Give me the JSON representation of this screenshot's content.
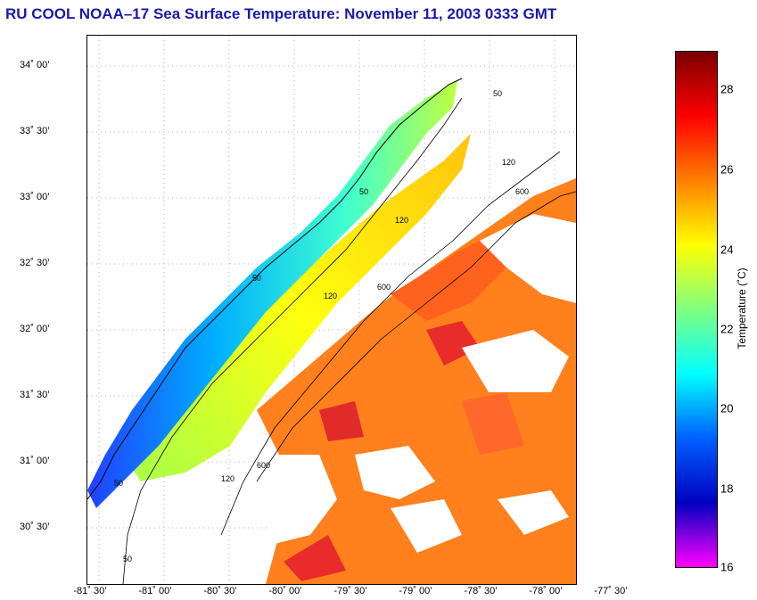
{
  "header": {
    "title": "RU COOL  NOAA–17  Sea Surface Temperature:  November 11, 2003 0333 GMT"
  },
  "map": {
    "lat_labels": [
      "34˚ 00’",
      "33˚ 30’",
      "33˚ 00’",
      "32˚ 30’",
      "32˚ 00’",
      "31˚ 30’",
      "31˚ 00’",
      "30˚ 30’"
    ],
    "lon_labels": [
      "-81˚ 30’",
      "-81˚ 00’",
      "-80˚ 30’",
      "-80˚ 00’",
      "-79˚ 30’",
      "-79˚ 00’",
      "-78˚ 30’",
      "-78˚ 00’",
      "-77˚ 30’"
    ],
    "contour_labels": [
      "50",
      "50",
      "50",
      "50",
      "50",
      "120",
      "120",
      "120",
      "120",
      "600",
      "600",
      "600"
    ]
  },
  "colorbar": {
    "ticks": [
      "28",
      "26",
      "24",
      "22",
      "20",
      "18",
      "16"
    ],
    "label": "Temperature (˚C)",
    "colors": [
      "#7a0000",
      "#ff0000",
      "#ff8000",
      "#ffff00",
      "#80ff80",
      "#00ffff",
      "#0060ff",
      "#0000c0",
      "#ff00ff"
    ]
  }
}
